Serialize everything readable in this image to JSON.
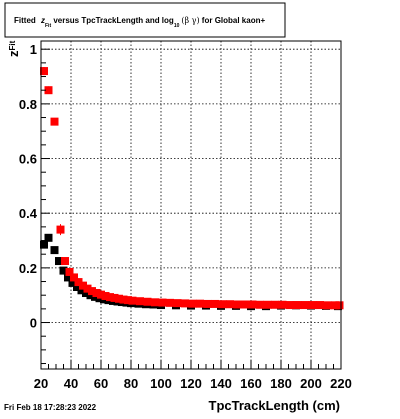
{
  "title": {
    "prefix": "Fitted ",
    "z_symbol": "z",
    "z_sub": "Fit",
    "middle": " versus TpcTrackLength and log",
    "log_sub": "10",
    "beta_gamma": "(β γ)",
    "suffix": " for Global kaon+"
  },
  "timestamp": "Fri Feb 18 17:28:23 2022",
  "colors": {
    "series_black": "#000000",
    "series_red": "#ff0000",
    "frame": "#000000",
    "grid": "#000000",
    "background": "#ffffff"
  },
  "chart_data": {
    "type": "scatter",
    "title": "Fitted z_Fit versus TpcTrackLength and log10(β γ) for Global kaon+",
    "xlabel": "TpcTrackLength (cm)",
    "ylabel": "z_Fit",
    "ylabel_main": "z",
    "ylabel_sub": "Fit",
    "xlim": [
      20,
      220
    ],
    "ylim": [
      -0.17,
      1.03
    ],
    "x_ticks": [
      20,
      40,
      60,
      80,
      100,
      120,
      140,
      160,
      180,
      200,
      220
    ],
    "y_ticks": [
      0,
      0.2,
      0.4,
      0.6,
      0.8,
      1
    ],
    "y_tick_labels": [
      "0",
      "0.2",
      "0.4",
      "0.6",
      "0.8",
      "1"
    ],
    "grid": true,
    "series": [
      {
        "color": "#000000",
        "x": [
          22,
          25,
          29,
          32,
          35,
          38,
          41,
          44,
          47,
          50,
          53,
          56,
          59,
          62,
          65,
          68,
          71,
          74,
          77,
          80,
          85,
          90,
          95,
          100,
          110,
          120,
          130,
          140,
          150,
          160,
          170,
          180,
          190,
          200,
          210,
          218
        ],
        "y": [
          0.285,
          0.31,
          0.265,
          0.225,
          0.19,
          0.165,
          0.145,
          0.13,
          0.118,
          0.108,
          0.1,
          0.094,
          0.089,
          0.085,
          0.082,
          0.079,
          0.077,
          0.075,
          0.073,
          0.071,
          0.069,
          0.067,
          0.066,
          0.064,
          0.063,
          0.062,
          0.062,
          0.061,
          0.061,
          0.06,
          0.06,
          0.062,
          0.063,
          0.062,
          0.061,
          0.06
        ],
        "err": [
          0.012,
          0.012,
          0.01,
          0.008,
          0.006,
          0.005,
          0.004,
          0.004,
          0.003,
          0.003,
          0.003,
          0.003,
          0.002,
          0.002,
          0.002,
          0.002,
          0.002,
          0.002,
          0.002,
          0.002,
          0.002,
          0.002,
          0.002,
          0.002,
          0.002,
          0.002,
          0.002,
          0.002,
          0.002,
          0.002,
          0.002,
          0.003,
          0.003,
          0.003,
          0.003,
          0.003
        ]
      },
      {
        "color": "#ff0000",
        "x": [
          22,
          25,
          29,
          33,
          36,
          39,
          42,
          45,
          48,
          51,
          54,
          57,
          60,
          63,
          66,
          69,
          72,
          75,
          78,
          81,
          86,
          91,
          96,
          101,
          106,
          111,
          116,
          121,
          126,
          131,
          136,
          141,
          146,
          151,
          156,
          161,
          166,
          171,
          176,
          181,
          186,
          191,
          196,
          201,
          206,
          211,
          216,
          219
        ],
        "y": [
          0.92,
          0.85,
          0.735,
          0.34,
          0.225,
          0.185,
          0.165,
          0.148,
          0.135,
          0.124,
          0.115,
          0.108,
          0.102,
          0.097,
          0.093,
          0.09,
          0.087,
          0.084,
          0.082,
          0.08,
          0.078,
          0.076,
          0.074,
          0.073,
          0.072,
          0.071,
          0.07,
          0.069,
          0.069,
          0.068,
          0.068,
          0.067,
          0.067,
          0.066,
          0.066,
          0.066,
          0.065,
          0.065,
          0.065,
          0.065,
          0.064,
          0.064,
          0.064,
          0.064,
          0.064,
          0.063,
          0.063,
          0.063
        ],
        "err": [
          0.015,
          0.014,
          0.013,
          0.02,
          0.01,
          0.007,
          0.006,
          0.005,
          0.004,
          0.004,
          0.003,
          0.003,
          0.003,
          0.003,
          0.003,
          0.002,
          0.002,
          0.002,
          0.002,
          0.002,
          0.002,
          0.002,
          0.002,
          0.002,
          0.002,
          0.002,
          0.002,
          0.002,
          0.002,
          0.002,
          0.002,
          0.002,
          0.002,
          0.002,
          0.002,
          0.002,
          0.002,
          0.002,
          0.002,
          0.002,
          0.002,
          0.002,
          0.002,
          0.002,
          0.002,
          0.002,
          0.002,
          0.002
        ]
      }
    ]
  }
}
